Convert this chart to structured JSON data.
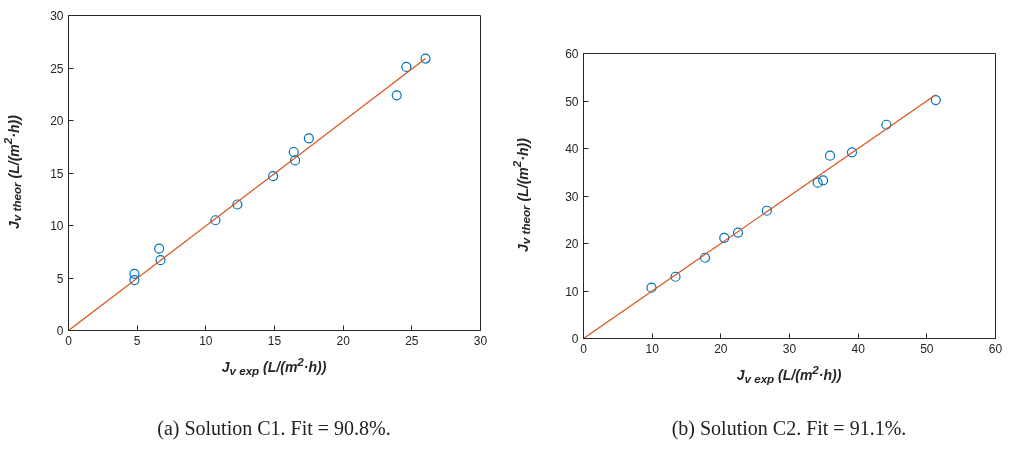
{
  "chart_data": [
    {
      "type": "scatter",
      "xlabel": "J$_{v exp}$ (L/(m$^{2}$·h))",
      "ylabel": "J$_{v theor}$ (L/(m$^{2}$·h))",
      "xlim": [
        0,
        30
      ],
      "ylim": [
        0,
        30
      ],
      "xticks": [
        0,
        5,
        10,
        15,
        20,
        25,
        30
      ],
      "yticks": [
        0,
        5,
        10,
        15,
        20,
        25,
        30
      ],
      "grid": false,
      "annotations": [
        "(a) Solution C1. Fit = 90.8%."
      ],
      "series": [
        {
          "type": "scatter",
          "marker": "circle",
          "color": "#0072bd",
          "x": [
            4.8,
            4.8,
            6.6,
            6.7,
            10.7,
            12.3,
            14.9,
            16.4,
            16.5,
            17.5,
            23.9,
            24.6,
            26.0
          ],
          "values": [
            4.8,
            5.4,
            7.8,
            6.7,
            10.5,
            12.0,
            14.7,
            17.0,
            16.2,
            18.3,
            22.4,
            25.1,
            25.9
          ]
        },
        {
          "type": "line",
          "color": "#d95319",
          "line_style": "solid",
          "x": [
            0,
            26.0
          ],
          "values": [
            0,
            25.9
          ]
        }
      ]
    },
    {
      "type": "scatter",
      "xlabel": "J$_{v exp}$ (L/(m$^{2}$·h))",
      "ylabel": "J$_{v theor}$ (L/(m$^{2}$·h))",
      "xlim": [
        0,
        60
      ],
      "ylim": [
        0,
        60
      ],
      "xticks": [
        0,
        10,
        20,
        30,
        40,
        50,
        60
      ],
      "yticks": [
        0,
        10,
        20,
        30,
        40,
        50,
        60
      ],
      "grid": false,
      "annotations": [
        "(b) Solution C2. Fit = 91.1%."
      ],
      "series": [
        {
          "type": "scatter",
          "marker": "circle",
          "color": "#0072bd",
          "x": [
            9.9,
            13.4,
            17.7,
            20.5,
            22.5,
            26.7,
            34.1,
            34.9,
            35.9,
            39.1,
            44.1,
            51.3
          ],
          "values": [
            10.7,
            13.0,
            17.0,
            21.2,
            22.3,
            26.9,
            32.8,
            33.3,
            38.5,
            39.2,
            45.0,
            50.2
          ]
        },
        {
          "type": "line",
          "color": "#d95319",
          "line_style": "solid",
          "x": [
            0,
            51.3
          ],
          "values": [
            0,
            51.3
          ]
        }
      ]
    }
  ]
}
